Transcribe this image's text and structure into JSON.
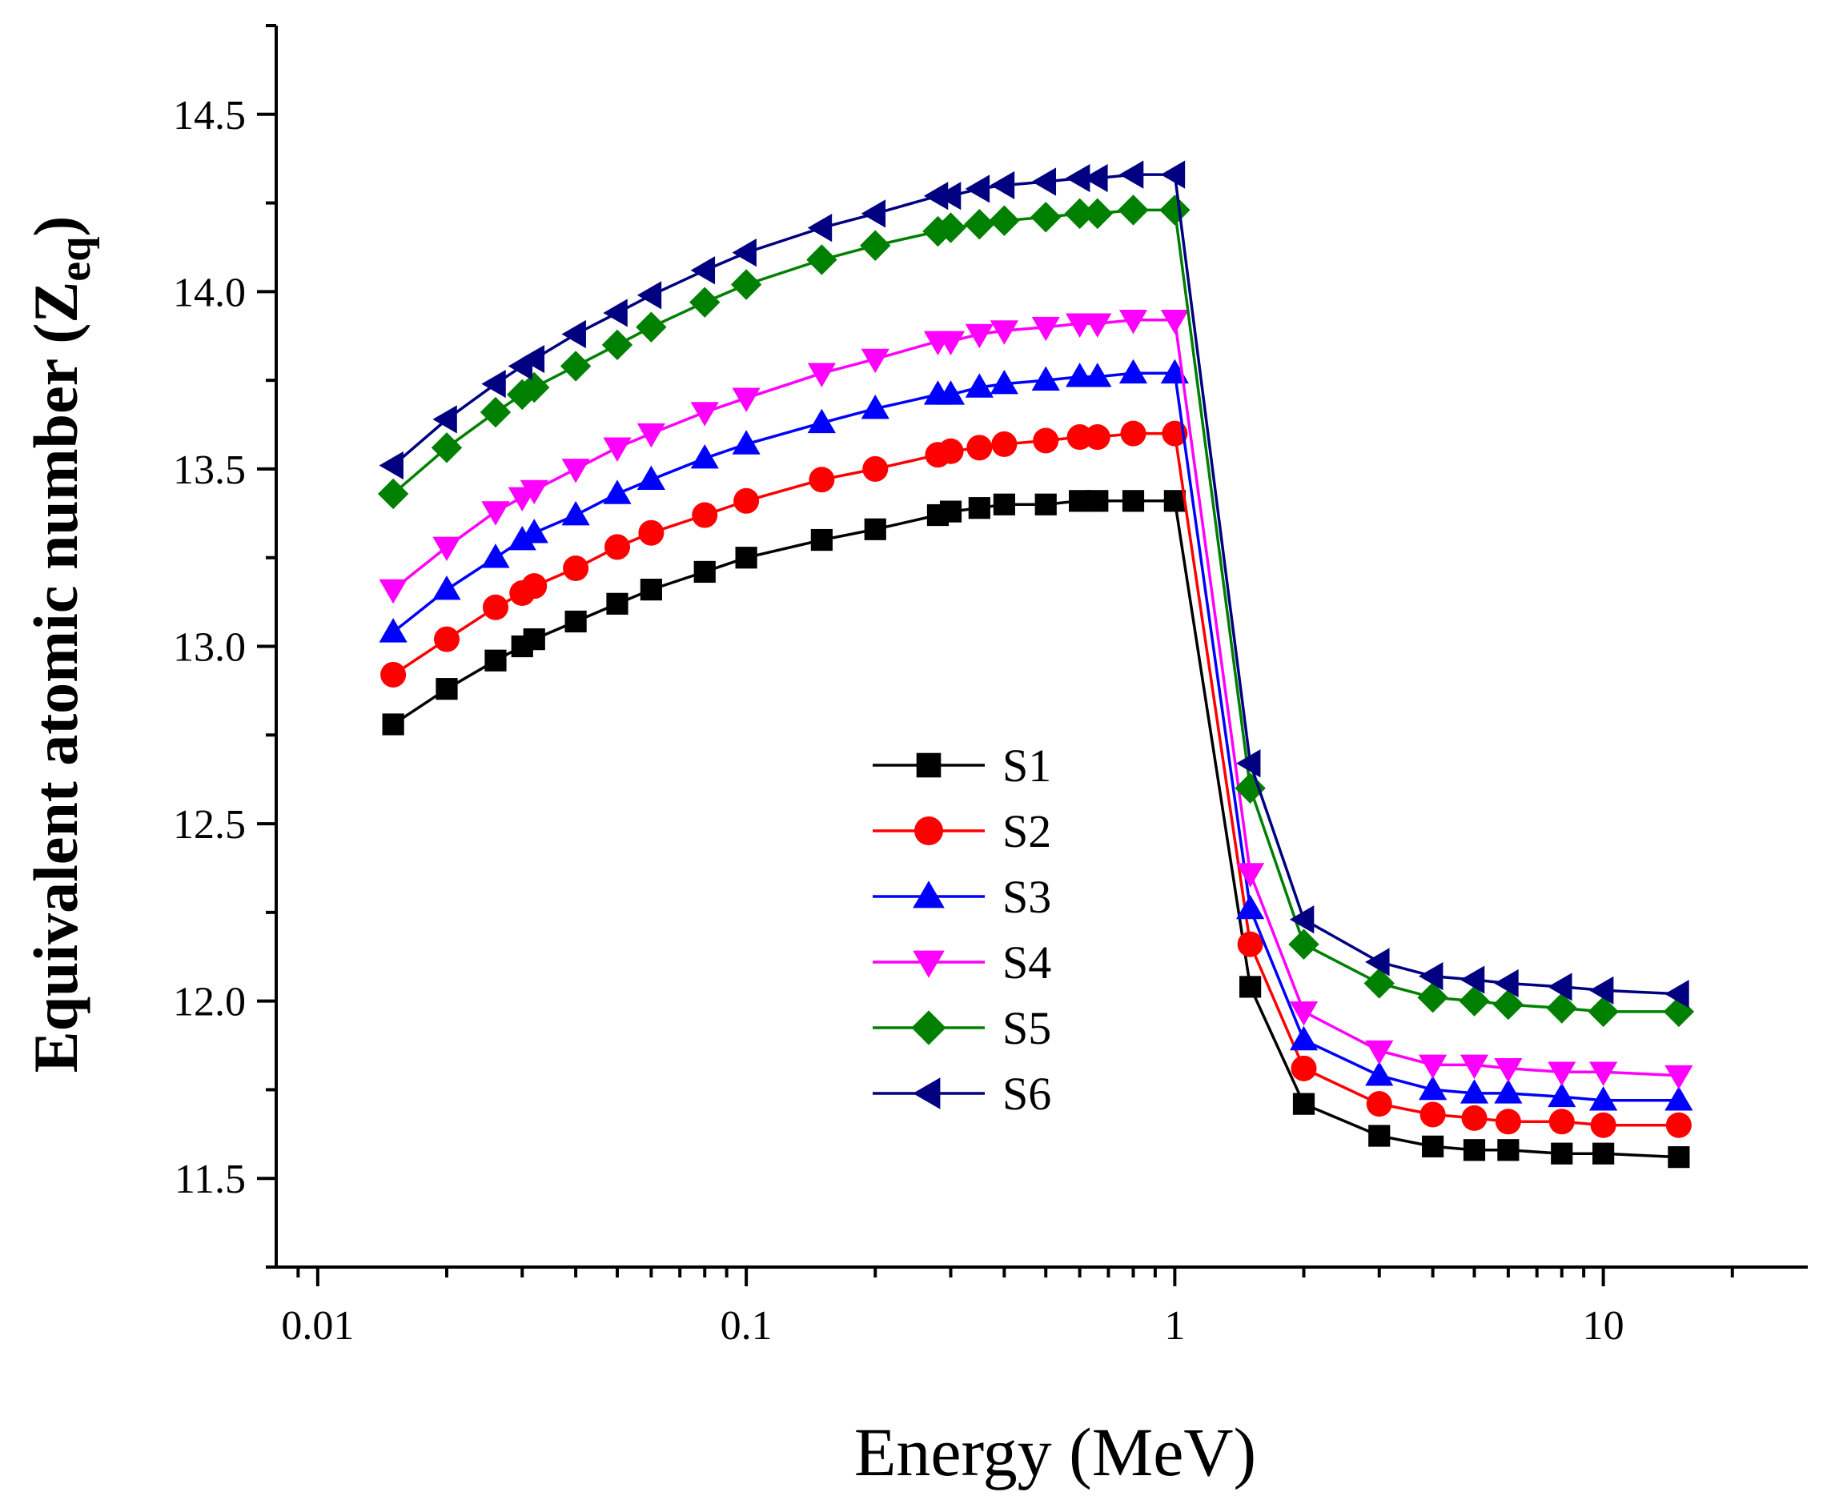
{
  "chart_data": {
    "type": "line",
    "title": "",
    "xlabel": "Energy (MeV)",
    "ylabel_main": "Equivalent atomic number (Z",
    "ylabel_sub": "eq",
    "ylabel_close": ")",
    "xscale": "log",
    "xlim": [
      0.008,
      30
    ],
    "ylim": [
      11.25,
      14.75
    ],
    "xticks": [
      {
        "value": 0.01,
        "label": "0.01"
      },
      {
        "value": 0.1,
        "label": "0.1"
      },
      {
        "value": 1,
        "label": "1"
      },
      {
        "value": 10,
        "label": "10"
      }
    ],
    "yticks": [
      {
        "value": 11.5,
        "label": "11.5"
      },
      {
        "value": 12.0,
        "label": "12.0"
      },
      {
        "value": 12.5,
        "label": "12.5"
      },
      {
        "value": 13.0,
        "label": "13.0"
      },
      {
        "value": 13.5,
        "label": "13.5"
      },
      {
        "value": 14.0,
        "label": "14.0"
      },
      {
        "value": 14.5,
        "label": "14.5"
      }
    ],
    "legend_position": "center",
    "x": [
      0.015,
      0.02,
      0.026,
      0.03,
      0.032,
      0.04,
      0.05,
      0.06,
      0.08,
      0.1,
      0.15,
      0.2,
      0.28,
      0.3,
      0.35,
      0.4,
      0.5,
      0.6,
      0.66,
      0.8,
      1,
      1.5,
      2,
      3,
      4,
      5,
      6,
      8,
      10,
      15
    ],
    "series": [
      {
        "name": "S1",
        "color": "#000000",
        "marker": "square",
        "values": [
          12.78,
          12.88,
          12.96,
          13.0,
          13.02,
          13.07,
          13.12,
          13.16,
          13.21,
          13.25,
          13.3,
          13.33,
          13.37,
          13.38,
          13.39,
          13.4,
          13.4,
          13.41,
          13.41,
          13.41,
          13.41,
          12.04,
          11.71,
          11.62,
          11.59,
          11.58,
          11.58,
          11.57,
          11.57,
          11.56
        ]
      },
      {
        "name": "S2",
        "color": "#ff0000",
        "marker": "circle",
        "values": [
          12.92,
          13.02,
          13.11,
          13.15,
          13.17,
          13.22,
          13.28,
          13.32,
          13.37,
          13.41,
          13.47,
          13.5,
          13.54,
          13.55,
          13.56,
          13.57,
          13.58,
          13.59,
          13.59,
          13.6,
          13.6,
          12.16,
          11.81,
          11.71,
          11.68,
          11.67,
          11.66,
          11.66,
          11.65,
          11.65
        ]
      },
      {
        "name": "S3",
        "color": "#0000ff",
        "marker": "triangle-up",
        "values": [
          13.04,
          13.16,
          13.25,
          13.3,
          13.32,
          13.37,
          13.43,
          13.47,
          13.53,
          13.57,
          13.63,
          13.67,
          13.71,
          13.71,
          13.73,
          13.74,
          13.75,
          13.76,
          13.76,
          13.77,
          13.77,
          12.26,
          11.89,
          11.79,
          11.75,
          11.74,
          11.74,
          11.73,
          11.72,
          11.72
        ]
      },
      {
        "name": "S4",
        "color": "#ff00ff",
        "marker": "triangle-down",
        "values": [
          13.16,
          13.28,
          13.38,
          13.42,
          13.44,
          13.5,
          13.56,
          13.6,
          13.66,
          13.7,
          13.77,
          13.81,
          13.86,
          13.86,
          13.88,
          13.89,
          13.9,
          13.91,
          13.91,
          13.92,
          13.92,
          12.36,
          11.97,
          11.86,
          11.82,
          11.82,
          11.81,
          11.8,
          11.8,
          11.79
        ]
      },
      {
        "name": "S5",
        "color": "#008000",
        "marker": "diamond",
        "values": [
          13.43,
          13.56,
          13.66,
          13.71,
          13.73,
          13.79,
          13.85,
          13.9,
          13.97,
          14.02,
          14.09,
          14.13,
          14.17,
          14.18,
          14.19,
          14.2,
          14.21,
          14.22,
          14.22,
          14.23,
          14.23,
          12.6,
          12.16,
          12.05,
          12.01,
          12.0,
          11.99,
          11.98,
          11.97,
          11.97
        ]
      },
      {
        "name": "S6",
        "color": "#000080",
        "marker": "triangle-left",
        "values": [
          13.51,
          13.64,
          13.74,
          13.79,
          13.81,
          13.88,
          13.94,
          13.99,
          14.06,
          14.11,
          14.18,
          14.22,
          14.27,
          14.27,
          14.29,
          14.3,
          14.31,
          14.32,
          14.32,
          14.33,
          14.33,
          12.67,
          12.23,
          12.11,
          12.07,
          12.06,
          12.05,
          12.04,
          12.03,
          12.02
        ]
      }
    ]
  }
}
